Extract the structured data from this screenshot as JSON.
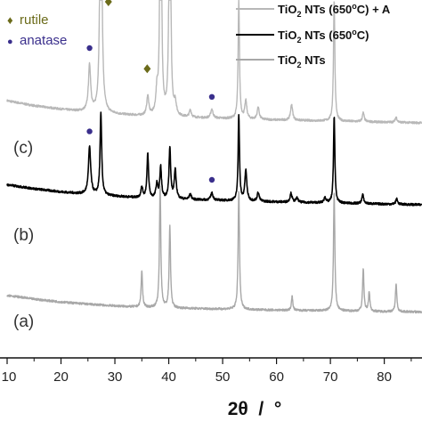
{
  "chart_data": {
    "type": "line",
    "xlabel": "2θ  /  °",
    "ylabel": "",
    "xlim": [
      10,
      87
    ],
    "xticks": [
      10,
      20,
      30,
      40,
      50,
      60,
      70,
      80
    ],
    "grid": false,
    "legend_placement": "top-right",
    "series": [
      {
        "name": "TiO2 NTs (650°C) + A",
        "curve_label": "(c)",
        "color": "#b8b8b8",
        "baseline": {
          "x": [
            10,
            15,
            20,
            25,
            30,
            35,
            40,
            50,
            60,
            70,
            80,
            87
          ],
          "y": [
            0.722,
            0.708,
            0.698,
            0.69,
            0.684,
            0.679,
            0.676,
            0.672,
            0.668,
            0.665,
            0.662,
            0.66
          ]
        },
        "peaks": [
          {
            "x": 25.3,
            "h": 0.13,
            "w": 0.25
          },
          {
            "x": 27.4,
            "h": 0.999,
            "w": 0.18
          },
          {
            "x": 36.1,
            "h": 0.055,
            "w": 0.22
          },
          {
            "x": 37.8,
            "h": 0.06,
            "w": 0.22
          },
          {
            "x": 38.5,
            "h": 0.999,
            "w": 0.15
          },
          {
            "x": 40.2,
            "h": 0.999,
            "w": 0.15
          },
          {
            "x": 41.2,
            "h": 0.035,
            "w": 0.22
          },
          {
            "x": 44.0,
            "h": 0.02,
            "w": 0.22
          },
          {
            "x": 48.0,
            "h": 0.025,
            "w": 0.25
          },
          {
            "x": 53.0,
            "h": 0.33,
            "w": 0.15
          },
          {
            "x": 54.3,
            "h": 0.05,
            "w": 0.22
          },
          {
            "x": 56.6,
            "h": 0.035,
            "w": 0.22
          },
          {
            "x": 62.8,
            "h": 0.045,
            "w": 0.22
          },
          {
            "x": 70.7,
            "h": 0.34,
            "w": 0.15
          },
          {
            "x": 76.1,
            "h": 0.025,
            "w": 0.2
          },
          {
            "x": 82.2,
            "h": 0.015,
            "w": 0.2
          }
        ]
      },
      {
        "name": "TiO2 NTs (650°C)",
        "curve_label": "(b)",
        "color": "#000000",
        "baseline": {
          "x": [
            10,
            15,
            20,
            25,
            30,
            35,
            40,
            50,
            60,
            70,
            80,
            87
          ],
          "y": [
            0.486,
            0.475,
            0.466,
            0.459,
            0.454,
            0.449,
            0.446,
            0.442,
            0.438,
            0.435,
            0.432,
            0.43
          ]
        },
        "peaks": [
          {
            "x": 25.3,
            "h": 0.133,
            "w": 0.25
          },
          {
            "x": 27.4,
            "h": 0.23,
            "w": 0.18
          },
          {
            "x": 35.0,
            "h": 0.03,
            "w": 0.2
          },
          {
            "x": 36.1,
            "h": 0.123,
            "w": 0.18
          },
          {
            "x": 37.8,
            "h": 0.04,
            "w": 0.22
          },
          {
            "x": 38.5,
            "h": 0.088,
            "w": 0.18
          },
          {
            "x": 40.2,
            "h": 0.144,
            "w": 0.18
          },
          {
            "x": 41.2,
            "h": 0.08,
            "w": 0.22
          },
          {
            "x": 44.0,
            "h": 0.015,
            "w": 0.22
          },
          {
            "x": 48.0,
            "h": 0.02,
            "w": 0.25
          },
          {
            "x": 53.0,
            "h": 0.24,
            "w": 0.15
          },
          {
            "x": 54.3,
            "h": 0.085,
            "w": 0.22
          },
          {
            "x": 56.6,
            "h": 0.025,
            "w": 0.22
          },
          {
            "x": 62.7,
            "h": 0.025,
            "w": 0.22
          },
          {
            "x": 63.8,
            "h": 0.012,
            "w": 0.22
          },
          {
            "x": 69.0,
            "h": 0.015,
            "w": 0.22
          },
          {
            "x": 70.7,
            "h": 0.245,
            "w": 0.15
          },
          {
            "x": 76.0,
            "h": 0.025,
            "w": 0.2
          },
          {
            "x": 82.3,
            "h": 0.015,
            "w": 0.2
          }
        ]
      },
      {
        "name": "TiO2 NTs",
        "curve_label": "(a)",
        "color": "#a8a8a8",
        "baseline": {
          "x": [
            10,
            15,
            20,
            25,
            30,
            35,
            40,
            50,
            60,
            70,
            80,
            87
          ],
          "y": [
            0.176,
            0.165,
            0.157,
            0.151,
            0.146,
            0.142,
            0.14,
            0.137,
            0.134,
            0.132,
            0.13,
            0.129
          ]
        },
        "peaks": [
          {
            "x": 35.0,
            "h": 0.103,
            "w": 0.15
          },
          {
            "x": 38.4,
            "h": 0.34,
            "w": 0.15
          },
          {
            "x": 40.2,
            "h": 0.23,
            "w": 0.15
          },
          {
            "x": 53.0,
            "h": 0.333,
            "w": 0.15
          },
          {
            "x": 62.9,
            "h": 0.04,
            "w": 0.15
          },
          {
            "x": 70.7,
            "h": 0.333,
            "w": 0.15
          },
          {
            "x": 76.1,
            "h": 0.12,
            "w": 0.15
          },
          {
            "x": 77.2,
            "h": 0.055,
            "w": 0.15
          },
          {
            "x": 82.2,
            "h": 0.08,
            "w": 0.15
          }
        ]
      }
    ],
    "markers": [
      {
        "type": "rutile",
        "x": 28.8,
        "y": 1.0,
        "color": "#6b6b1a"
      },
      {
        "type": "rutile",
        "x": 36.0,
        "y": 0.812,
        "color": "#6b6b1a"
      },
      {
        "type": "anatase",
        "x": 25.3,
        "y": 0.87,
        "color": "#3a2f8c"
      },
      {
        "type": "anatase",
        "x": 48.0,
        "y": 0.733,
        "color": "#3a2f8c"
      },
      {
        "type": "anatase",
        "x": 25.3,
        "y": 0.636,
        "color": "#3a2f8c"
      },
      {
        "type": "anatase",
        "x": 48.0,
        "y": 0.5,
        "color": "#3a2f8c"
      }
    ],
    "phase_legend": [
      {
        "symbol": "♦",
        "label": "rutile",
        "color": "#6b6b1a"
      },
      {
        "symbol": "●",
        "label": "anatase",
        "color": "#3a2f8c"
      }
    ],
    "series_legend": [
      {
        "base": "TiO",
        "sub": "2",
        "rest": " NTs (650",
        "sup": "o",
        "tail": "C) + A",
        "color": "#b8b8b8"
      },
      {
        "base": "TiO",
        "sub": "2",
        "rest": " NTs (650",
        "sup": "o",
        "tail": "C)",
        "color": "#000000"
      },
      {
        "base": "TiO",
        "sub": "2",
        "rest": " NTs",
        "sup": "",
        "tail": "",
        "color": "#a8a8a8"
      }
    ]
  }
}
